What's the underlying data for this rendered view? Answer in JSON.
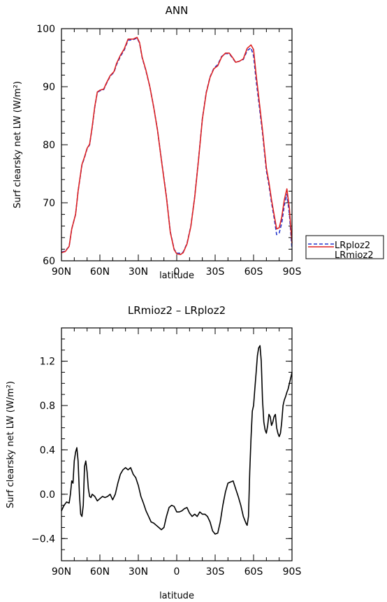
{
  "chart_data": [
    {
      "type": "line",
      "title": "ANN",
      "xlabel": "latitude",
      "ylabel": "Surf clearsky net LW (W/m²)",
      "xlim": [
        90,
        -90
      ],
      "ylim": [
        60,
        100
      ],
      "xticks": [
        90,
        60,
        30,
        0,
        -30,
        -60,
        -90
      ],
      "xtick_labels": [
        "90N",
        "60N",
        "30N",
        "0",
        "30S",
        "60S",
        "90S"
      ],
      "yticks": [
        60,
        70,
        80,
        90,
        100
      ],
      "ytick_labels": [
        "60",
        "70",
        "80",
        "90",
        "100"
      ],
      "legend": "outside-right",
      "series": [
        {
          "name": "LRploz2",
          "color": "#2233cc",
          "style": "dashed",
          "points": [
            [
              90,
              61.5
            ],
            [
              87,
              61.7
            ],
            [
              84,
              62.5
            ],
            [
              82,
              65.5
            ],
            [
              79,
              68
            ],
            [
              77,
              72
            ],
            [
              74,
              76.5
            ],
            [
              72,
              77.8
            ],
            [
              70,
              79.3
            ],
            [
              68,
              80
            ],
            [
              66,
              83
            ],
            [
              64,
              86.5
            ],
            [
              62,
              89
            ],
            [
              60,
              89.3
            ],
            [
              57,
              89.5
            ],
            [
              55,
              90.5
            ],
            [
              52,
              91.8
            ],
            [
              49,
              92.5
            ],
            [
              47,
              93.8
            ],
            [
              44,
              95.2
            ],
            [
              41,
              96.3
            ],
            [
              38,
              98
            ],
            [
              34,
              98.1
            ],
            [
              31,
              98.4
            ],
            [
              29,
              97.5
            ],
            [
              27,
              95
            ],
            [
              24,
              92.7
            ],
            [
              21,
              90
            ],
            [
              18,
              86.5
            ],
            [
              15,
              82.5
            ],
            [
              12,
              77.5
            ],
            [
              8,
              71
            ],
            [
              5,
              65
            ],
            [
              2,
              62
            ],
            [
              0,
              61.3
            ],
            [
              -3,
              61.3
            ],
            [
              -5,
              61.5
            ],
            [
              -8,
              63
            ],
            [
              -11,
              66
            ],
            [
              -14,
              71
            ],
            [
              -17,
              77.5
            ],
            [
              -20,
              84.5
            ],
            [
              -23,
              89
            ],
            [
              -26,
              91.7
            ],
            [
              -29,
              93.2
            ],
            [
              -32,
              93.8
            ],
            [
              -35,
              95.2
            ],
            [
              -38,
              95.7
            ],
            [
              -41,
              95.7
            ],
            [
              -44,
              94.8
            ],
            [
              -46,
              94.2
            ],
            [
              -49,
              94.4
            ],
            [
              -52,
              94.7
            ],
            [
              -55,
              96.2
            ],
            [
              -58,
              96.7
            ],
            [
              -60,
              95.3
            ],
            [
              -62,
              91
            ],
            [
              -64,
              87.5
            ],
            [
              -67,
              82
            ],
            [
              -70,
              75.5
            ],
            [
              -72,
              73
            ],
            [
              -74,
              70
            ],
            [
              -76,
              67.5
            ],
            [
              -78,
              64.5
            ],
            [
              -80,
              64.8
            ],
            [
              -82,
              66.5
            ],
            [
              -84,
              69.5
            ],
            [
              -86,
              71.5
            ],
            [
              -88,
              68
            ],
            [
              -90,
              62
            ]
          ]
        },
        {
          "name": "LRmioz2",
          "color": "#dd2222",
          "style": "solid",
          "points": [
            [
              90,
              61.4
            ],
            [
              87,
              61.6
            ],
            [
              84,
              62.5
            ],
            [
              82,
              65.5
            ],
            [
              79,
              68
            ],
            [
              77,
              72
            ],
            [
              74,
              76.6
            ],
            [
              72,
              77.9
            ],
            [
              70,
              79.4
            ],
            [
              68,
              80.1
            ],
            [
              66,
              83.1
            ],
            [
              64,
              86.6
            ],
            [
              62,
              89.1
            ],
            [
              60,
              89.4
            ],
            [
              57,
              89.6
            ],
            [
              55,
              90.6
            ],
            [
              52,
              91.9
            ],
            [
              49,
              92.6
            ],
            [
              47,
              94
            ],
            [
              44,
              95.4
            ],
            [
              41,
              96.5
            ],
            [
              38,
              98.2
            ],
            [
              34,
              98.2
            ],
            [
              31,
              98.5
            ],
            [
              29,
              97.6
            ],
            [
              27,
              95.1
            ],
            [
              24,
              92.8
            ],
            [
              21,
              90
            ],
            [
              18,
              86.5
            ],
            [
              15,
              82.5
            ],
            [
              12,
              77.4
            ],
            [
              8,
              70.9
            ],
            [
              5,
              64.9
            ],
            [
              2,
              61.9
            ],
            [
              0,
              61.2
            ],
            [
              -3,
              61.1
            ],
            [
              -5,
              61.4
            ],
            [
              -8,
              62.9
            ],
            [
              -11,
              65.9
            ],
            [
              -14,
              70.9
            ],
            [
              -17,
              77.4
            ],
            [
              -20,
              84.4
            ],
            [
              -23,
              88.9
            ],
            [
              -26,
              91.6
            ],
            [
              -29,
              93.1
            ],
            [
              -32,
              93.6
            ],
            [
              -35,
              95.1
            ],
            [
              -38,
              95.8
            ],
            [
              -41,
              95.8
            ],
            [
              -44,
              94.9
            ],
            [
              -46,
              94.2
            ],
            [
              -49,
              94.4
            ],
            [
              -52,
              94.8
            ],
            [
              -55,
              96.6
            ],
            [
              -58,
              97.2
            ],
            [
              -60,
              96.4
            ],
            [
              -62,
              92
            ],
            [
              -64,
              88.3
            ],
            [
              -67,
              82.5
            ],
            [
              -70,
              76
            ],
            [
              -72,
              73.5
            ],
            [
              -74,
              70.5
            ],
            [
              -76,
              68
            ],
            [
              -78,
              65.5
            ],
            [
              -80,
              65.7
            ],
            [
              -82,
              67.5
            ],
            [
              -84,
              70.5
            ],
            [
              -86,
              72.4
            ],
            [
              -88,
              69
            ],
            [
              -90,
              63
            ]
          ]
        }
      ]
    },
    {
      "type": "line",
      "title": "LRmioz2 – LRploz2",
      "xlabel": "latitude",
      "ylabel": "Surf clearsky net LW (W/m²)",
      "xlim": [
        90,
        -90
      ],
      "ylim": [
        -0.6,
        1.5
      ],
      "xticks": [
        90,
        60,
        30,
        0,
        -30,
        -60,
        -90
      ],
      "xtick_labels": [
        "90N",
        "60N",
        "30N",
        "0",
        "30S",
        "60S",
        "90S"
      ],
      "yticks": [
        -0.4,
        0.0,
        0.4,
        0.8,
        1.2
      ],
      "ytick_labels": [
        "−0.4",
        "0.0",
        "0.4",
        "0.8",
        "1.2"
      ],
      "series": [
        {
          "color": "#000000",
          "style": "solid",
          "points": [
            [
              90,
              -0.15
            ],
            [
              88,
              -0.1
            ],
            [
              86,
              -0.07
            ],
            [
              84,
              -0.08
            ],
            [
              83,
              0.0
            ],
            [
              82,
              0.12
            ],
            [
              81,
              0.1
            ],
            [
              80,
              0.3
            ],
            [
              79,
              0.38
            ],
            [
              78,
              0.42
            ],
            [
              77,
              0.3
            ],
            [
              76,
              0.0
            ],
            [
              75,
              -0.18
            ],
            [
              74,
              -0.2
            ],
            [
              73,
              -0.1
            ],
            [
              72,
              0.25
            ],
            [
              71,
              0.3
            ],
            [
              70,
              0.2
            ],
            [
              69,
              0.05
            ],
            [
              68,
              -0.02
            ],
            [
              67,
              -0.03
            ],
            [
              66,
              0.0
            ],
            [
              64,
              -0.02
            ],
            [
              62,
              -0.06
            ],
            [
              60,
              -0.04
            ],
            [
              58,
              -0.02
            ],
            [
              56,
              -0.03
            ],
            [
              54,
              -0.02
            ],
            [
              52,
              0.0
            ],
            [
              50,
              -0.05
            ],
            [
              48,
              0.0
            ],
            [
              46,
              0.1
            ],
            [
              44,
              0.18
            ],
            [
              42,
              0.22
            ],
            [
              40,
              0.24
            ],
            [
              38,
              0.22
            ],
            [
              36,
              0.24
            ],
            [
              34,
              0.18
            ],
            [
              32,
              0.15
            ],
            [
              30,
              0.08
            ],
            [
              28,
              -0.02
            ],
            [
              26,
              -0.08
            ],
            [
              24,
              -0.15
            ],
            [
              22,
              -0.2
            ],
            [
              20,
              -0.25
            ],
            [
              18,
              -0.26
            ],
            [
              16,
              -0.28
            ],
            [
              14,
              -0.3
            ],
            [
              12,
              -0.32
            ],
            [
              10,
              -0.3
            ],
            [
              8,
              -0.2
            ],
            [
              6,
              -0.12
            ],
            [
              4,
              -0.1
            ],
            [
              2,
              -0.11
            ],
            [
              0,
              -0.16
            ],
            [
              -2,
              -0.16
            ],
            [
              -4,
              -0.15
            ],
            [
              -6,
              -0.13
            ],
            [
              -8,
              -0.12
            ],
            [
              -10,
              -0.17
            ],
            [
              -12,
              -0.2
            ],
            [
              -14,
              -0.18
            ],
            [
              -16,
              -0.2
            ],
            [
              -18,
              -0.16
            ],
            [
              -20,
              -0.18
            ],
            [
              -22,
              -0.18
            ],
            [
              -24,
              -0.2
            ],
            [
              -26,
              -0.25
            ],
            [
              -28,
              -0.33
            ],
            [
              -30,
              -0.36
            ],
            [
              -32,
              -0.35
            ],
            [
              -34,
              -0.25
            ],
            [
              -36,
              -0.1
            ],
            [
              -38,
              0.02
            ],
            [
              -40,
              0.1
            ],
            [
              -42,
              0.11
            ],
            [
              -44,
              0.12
            ],
            [
              -46,
              0.05
            ],
            [
              -48,
              -0.02
            ],
            [
              -50,
              -0.1
            ],
            [
              -52,
              -0.2
            ],
            [
              -54,
              -0.26
            ],
            [
              -55,
              -0.28
            ],
            [
              -56,
              -0.2
            ],
            [
              -57,
              0.2
            ],
            [
              -58,
              0.5
            ],
            [
              -59,
              0.75
            ],
            [
              -60,
              0.8
            ],
            [
              -61,
              0.95
            ],
            [
              -62,
              1.1
            ],
            [
              -63,
              1.25
            ],
            [
              -64,
              1.32
            ],
            [
              -65,
              1.34
            ],
            [
              -66,
              1.2
            ],
            [
              -67,
              0.85
            ],
            [
              -68,
              0.65
            ],
            [
              -69,
              0.58
            ],
            [
              -70,
              0.55
            ],
            [
              -71,
              0.62
            ],
            [
              -72,
              0.72
            ],
            [
              -73,
              0.7
            ],
            [
              -74,
              0.62
            ],
            [
              -75,
              0.65
            ],
            [
              -76,
              0.7
            ],
            [
              -77,
              0.72
            ],
            [
              -78,
              0.6
            ],
            [
              -79,
              0.55
            ],
            [
              -80,
              0.52
            ],
            [
              -81,
              0.55
            ],
            [
              -82,
              0.65
            ],
            [
              -83,
              0.8
            ],
            [
              -84,
              0.85
            ],
            [
              -85,
              0.88
            ],
            [
              -86,
              0.92
            ],
            [
              -87,
              0.95
            ],
            [
              -88,
              1.0
            ],
            [
              -89,
              1.05
            ],
            [
              -90,
              1.1
            ]
          ]
        }
      ]
    }
  ]
}
